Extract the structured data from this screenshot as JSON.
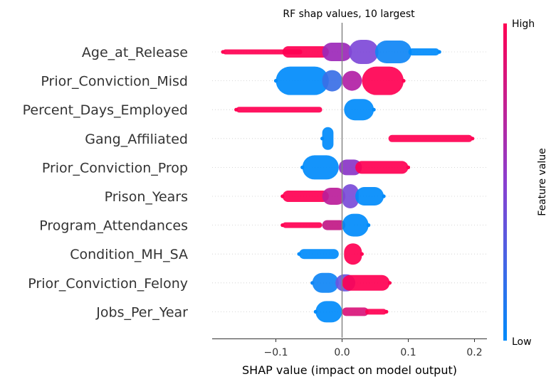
{
  "chart_data": {
    "type": "scatter",
    "subtype": "shap-beeswarm",
    "title": "RF shap values, 10 largest",
    "xlabel": "SHAP value (impact on model output)",
    "xlim": [
      -0.195,
      0.21
    ],
    "xticks": [
      {
        "value": -0.1,
        "label": "−0.1"
      },
      {
        "value": 0.0,
        "label": "0.0"
      },
      {
        "value": 0.1,
        "label": "0.1"
      },
      {
        "value": 0.2,
        "label": "0.2"
      }
    ],
    "colorbar": {
      "label": "Feature value",
      "high": "High",
      "low": "Low",
      "low_color": "#008bfb",
      "high_color": "#ff0052"
    },
    "zero_line": true,
    "features": [
      {
        "name": "Age_at_Release",
        "min": -0.18,
        "max": 0.147,
        "segments": [
          {
            "from": -0.18,
            "to": -0.06,
            "color": "#ff0052",
            "w": 7
          },
          {
            "from": -0.09,
            "to": -0.02,
            "color": "#ff0052",
            "w": 16
          },
          {
            "from": -0.03,
            "to": 0.015,
            "color": "#9c28b8",
            "w": 26
          },
          {
            "from": 0.01,
            "to": 0.055,
            "color": "#7e49d8",
            "w": 34
          },
          {
            "from": 0.05,
            "to": 0.105,
            "color": "#0f86f5",
            "w": 32
          },
          {
            "from": 0.1,
            "to": 0.147,
            "color": "#008bfb",
            "w": 10
          }
        ]
      },
      {
        "name": "Prior_Conviction_Misd",
        "min": -0.1,
        "max": 0.093,
        "segments": [
          {
            "from": -0.1,
            "to": -0.02,
            "color": "#008bfb",
            "w": 40
          },
          {
            "from": -0.03,
            "to": 0.0,
            "color": "#3a6fe6",
            "w": 30
          },
          {
            "from": 0.0,
            "to": 0.03,
            "color": "#b21fa5",
            "w": 28
          },
          {
            "from": 0.03,
            "to": 0.093,
            "color": "#ff0052",
            "w": 40
          }
        ]
      },
      {
        "name": "Percent_Days_Employed",
        "min": -0.16,
        "max": 0.048,
        "segments": [
          {
            "from": -0.16,
            "to": -0.03,
            "color": "#ff0052",
            "w": 8
          },
          {
            "from": 0.003,
            "to": 0.048,
            "color": "#008bfb",
            "w": 30
          }
        ]
      },
      {
        "name": "Gang_Affiliated",
        "min": -0.03,
        "max": 0.197,
        "segments": [
          {
            "from": -0.03,
            "to": -0.013,
            "color": "#008bfb",
            "w": 32
          },
          {
            "from": 0.07,
            "to": 0.197,
            "color": "#ff0052",
            "w": 10
          }
        ]
      },
      {
        "name": "Prior_Conviction_Prop",
        "min": -0.06,
        "max": 0.1,
        "segments": [
          {
            "from": -0.06,
            "to": -0.005,
            "color": "#008bfb",
            "w": 34
          },
          {
            "from": -0.005,
            "to": 0.03,
            "color": "#8a35c7",
            "w": 22
          },
          {
            "from": 0.02,
            "to": 0.1,
            "color": "#ff0052",
            "w": 18
          }
        ]
      },
      {
        "name": "Prison_Years",
        "min": -0.09,
        "max": 0.063,
        "segments": [
          {
            "from": -0.09,
            "to": -0.02,
            "color": "#ff0052",
            "w": 16
          },
          {
            "from": -0.03,
            "to": 0.005,
            "color": "#bb1d9a",
            "w": 24
          },
          {
            "from": 0.0,
            "to": 0.025,
            "color": "#7a4bd8",
            "w": 34
          },
          {
            "from": 0.02,
            "to": 0.063,
            "color": "#008bfb",
            "w": 26
          }
        ]
      },
      {
        "name": "Program_Attendances",
        "min": -0.09,
        "max": 0.04,
        "segments": [
          {
            "from": -0.09,
            "to": -0.03,
            "color": "#ff0052",
            "w": 8
          },
          {
            "from": -0.03,
            "to": 0.005,
            "color": "#c11885",
            "w": 14
          },
          {
            "from": 0.0,
            "to": 0.04,
            "color": "#008bfb",
            "w": 32
          }
        ]
      },
      {
        "name": "Condition_MH_SA",
        "min": -0.065,
        "max": 0.03,
        "segments": [
          {
            "from": -0.065,
            "to": -0.005,
            "color": "#008bfb",
            "w": 14
          },
          {
            "from": 0.003,
            "to": 0.03,
            "color": "#ff0052",
            "w": 30
          }
        ]
      },
      {
        "name": "Prior_Conviction_Felony",
        "min": -0.045,
        "max": 0.072,
        "segments": [
          {
            "from": -0.045,
            "to": -0.005,
            "color": "#0f86f5",
            "w": 28
          },
          {
            "from": -0.01,
            "to": 0.02,
            "color": "#6a55de",
            "w": 24
          },
          {
            "from": 0.0,
            "to": 0.072,
            "color": "#ff0052",
            "w": 22
          }
        ]
      },
      {
        "name": "Jobs_Per_Year",
        "min": -0.04,
        "max": 0.067,
        "segments": [
          {
            "from": -0.04,
            "to": 0.0,
            "color": "#008bfb",
            "w": 30
          },
          {
            "from": 0.0,
            "to": 0.04,
            "color": "#d9157a",
            "w": 12
          },
          {
            "from": 0.035,
            "to": 0.067,
            "color": "#ff0052",
            "w": 8
          }
        ]
      }
    ]
  }
}
